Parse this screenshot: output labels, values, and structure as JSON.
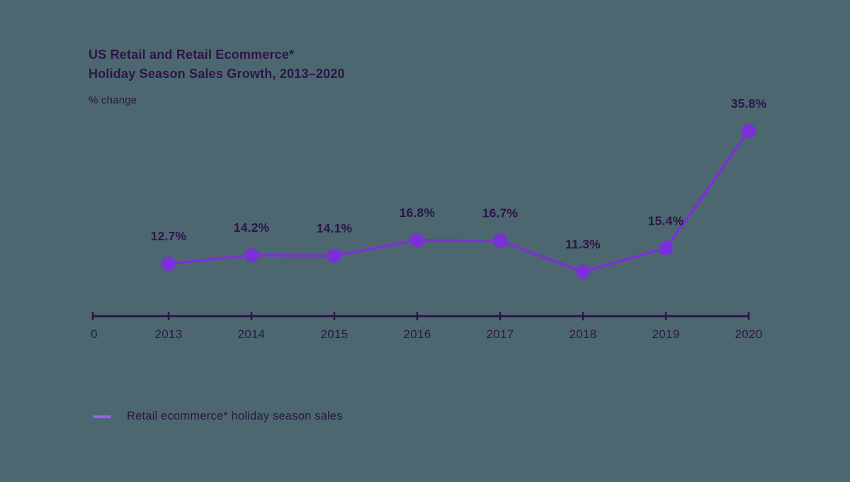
{
  "page": {
    "background": "#4d6770"
  },
  "chart_data": {
    "type": "line",
    "title_lines": [
      "US Retail and Retail Ecommerce*",
      "Holiday Season Sales Growth, 2013–2020"
    ],
    "unit_label": "% change",
    "categories": [
      "2013",
      "2014",
      "2015",
      "2016",
      "2017",
      "2018",
      "2019",
      "2020"
    ],
    "values": [
      12.7,
      14.2,
      14.1,
      16.8,
      16.7,
      11.3,
      15.4,
      35.8
    ],
    "point_labels": [
      "12.7%",
      "14.2%",
      "14.1%",
      "16.8%",
      "16.7%",
      "11.3%",
      "15.4%",
      "35.8%"
    ],
    "x_origin_label": "0",
    "series": [
      {
        "name": "Retail ecommerce* holiday season sales",
        "values": [
          12.7,
          14.2,
          14.1,
          16.8,
          16.7,
          11.3,
          15.4,
          35.8
        ]
      }
    ],
    "legend": [
      {
        "name": "Retail ecommerce* holiday season sales",
        "color": "#9b5ff0"
      }
    ],
    "legend_position": "bottom-left",
    "grid": false,
    "y_axis_shown": false,
    "xlabel": "",
    "ylabel": "% change",
    "colors": {
      "line": "#7b2fd8",
      "dot": "#7b2fd8",
      "axis": "#2d1547",
      "text": "#2d1547",
      "background": "#4d6770",
      "legend_swatch": "#9b5ff0"
    }
  }
}
